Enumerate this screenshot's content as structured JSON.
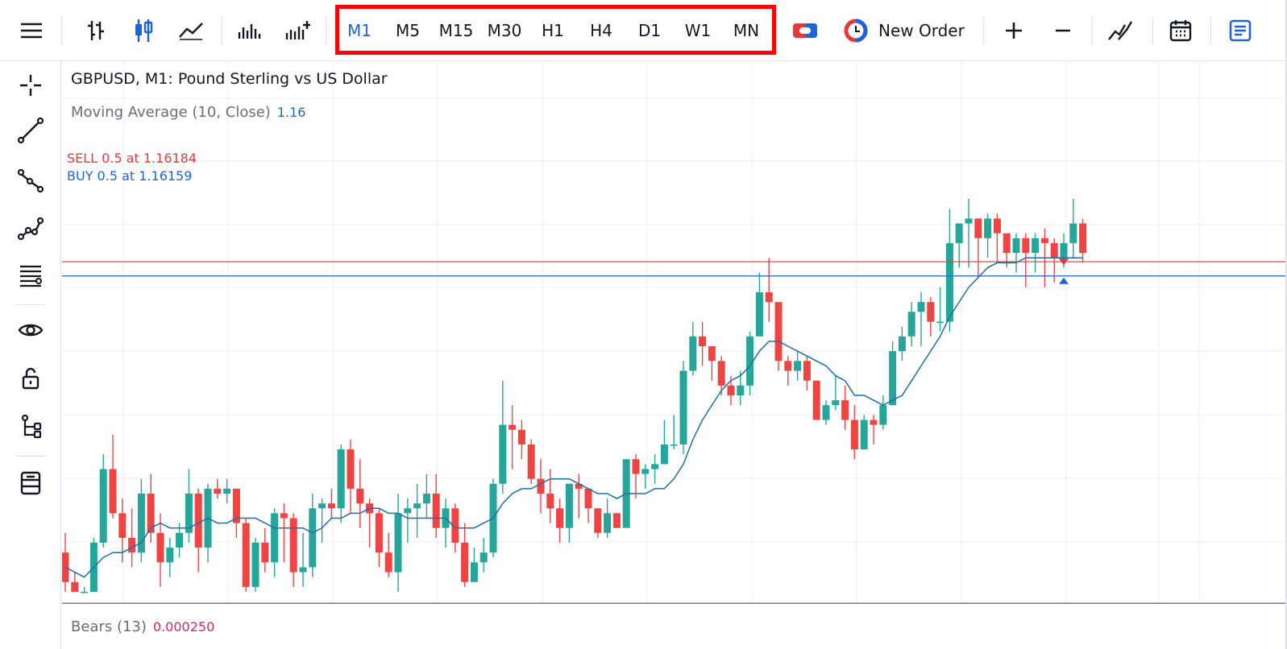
{
  "toolbar": {
    "timeframes": [
      "M1",
      "M5",
      "M15",
      "M30",
      "H1",
      "H4",
      "D1",
      "W1",
      "MN"
    ],
    "active_timeframe": "M1",
    "new_order_label": "New Order"
  },
  "chart": {
    "title": "GBPUSD, M1: Pound Sterling vs US Dollar",
    "indicator_label": "Moving Average (10, Close)",
    "indicator_value": "1.16",
    "sell_order": "SELL 0.5 at 1.16184",
    "buy_order": "BUY 0.5 at 1.16159",
    "bears_label": "Bears (13)",
    "bears_value": "0.000250"
  },
  "colors": {
    "bull": "#26a69a",
    "bear": "#ef4444",
    "ma_line": "#1e6ea8",
    "sell_line": "#e03a3e",
    "buy_line": "#1e64d8",
    "active": "#1e64d8"
  },
  "chart_data": {
    "type": "candlestick",
    "price_range": [
      0,
      100
    ],
    "sell_level": 67.2,
    "buy_level": 64.3,
    "candles": [
      [
        8,
        2,
        12,
        0
      ],
      [
        2,
        0,
        4,
        0
      ],
      [
        0,
        0,
        1,
        0
      ],
      [
        0,
        10,
        11,
        0
      ],
      [
        10,
        25,
        28,
        9
      ],
      [
        25,
        16,
        32,
        15
      ],
      [
        16,
        11,
        19,
        6
      ],
      [
        11,
        8,
        17,
        5
      ],
      [
        8,
        20,
        23,
        6
      ],
      [
        20,
        12,
        24,
        10
      ],
      [
        12,
        6,
        16,
        1
      ],
      [
        6,
        9,
        11,
        3
      ],
      [
        9,
        12,
        14,
        7
      ],
      [
        12,
        20,
        25,
        10
      ],
      [
        20,
        9,
        21,
        4
      ],
      [
        9,
        21,
        22,
        6
      ],
      [
        21,
        20,
        23,
        19
      ],
      [
        20,
        21,
        23,
        18
      ],
      [
        21,
        14,
        21,
        11
      ],
      [
        14,
        1,
        15,
        0
      ],
      [
        1,
        10,
        11,
        0
      ],
      [
        10,
        6,
        13,
        4
      ],
      [
        6,
        16,
        17,
        3
      ],
      [
        16,
        15,
        18,
        6
      ],
      [
        15,
        4,
        16,
        1
      ],
      [
        4,
        5,
        12,
        1
      ],
      [
        5,
        17,
        20,
        3
      ],
      [
        17,
        18,
        19,
        10
      ],
      [
        18,
        17,
        21,
        15
      ],
      [
        17,
        29,
        30,
        14
      ],
      [
        29,
        21,
        31,
        16
      ],
      [
        21,
        18,
        27,
        13
      ],
      [
        18,
        16,
        19,
        9
      ],
      [
        16,
        8,
        17,
        5
      ],
      [
        8,
        4,
        12,
        3
      ],
      [
        4,
        16,
        20,
        0
      ],
      [
        16,
        17,
        19,
        10
      ],
      [
        17,
        18,
        22,
        11
      ],
      [
        18,
        20,
        24,
        15
      ],
      [
        20,
        13,
        24,
        11
      ],
      [
        13,
        17,
        19,
        9
      ],
      [
        17,
        10,
        18,
        8
      ],
      [
        10,
        2,
        14,
        1
      ],
      [
        2,
        6,
        9,
        2
      ],
      [
        6,
        8,
        11,
        4
      ],
      [
        8,
        22,
        23,
        7
      ],
      [
        22,
        34,
        43,
        20
      ],
      [
        34,
        33,
        38,
        25
      ],
      [
        33,
        30,
        35,
        27
      ],
      [
        30,
        23,
        31,
        22
      ],
      [
        23,
        20,
        27,
        16
      ],
      [
        20,
        17,
        25,
        14
      ],
      [
        17,
        13,
        19,
        10
      ],
      [
        13,
        22,
        22,
        10
      ],
      [
        22,
        21,
        24,
        15
      ],
      [
        21,
        17,
        21,
        14
      ],
      [
        17,
        12,
        17,
        11
      ],
      [
        12,
        16,
        19,
        11
      ],
      [
        16,
        13,
        16,
        13
      ],
      [
        13,
        27,
        27,
        15
      ],
      [
        27,
        24,
        28,
        19
      ],
      [
        24,
        25,
        26,
        21
      ],
      [
        25,
        26,
        28,
        22
      ],
      [
        26,
        30,
        35,
        26
      ],
      [
        30,
        30,
        36,
        29
      ],
      [
        30,
        45,
        47,
        28
      ],
      [
        45,
        52,
        55,
        44
      ],
      [
        52,
        50,
        55,
        46
      ],
      [
        50,
        47,
        50,
        43
      ],
      [
        47,
        42,
        48,
        40
      ],
      [
        42,
        40,
        44,
        38
      ],
      [
        40,
        42,
        45,
        38
      ],
      [
        42,
        52,
        53,
        40
      ],
      [
        52,
        61,
        65,
        53
      ],
      [
        61,
        59,
        68,
        55
      ],
      [
        59,
        47,
        59,
        45
      ],
      [
        47,
        45,
        48,
        42
      ],
      [
        45,
        47,
        49,
        43
      ],
      [
        47,
        43,
        48,
        41
      ],
      [
        43,
        35,
        43,
        35
      ],
      [
        35,
        38,
        39,
        34
      ],
      [
        38,
        39,
        44,
        37
      ],
      [
        39,
        35,
        42,
        33
      ],
      [
        35,
        29,
        38,
        27
      ],
      [
        29,
        35,
        36,
        29
      ],
      [
        35,
        34,
        36,
        30
      ],
      [
        34,
        38,
        40,
        33
      ],
      [
        38,
        49,
        51,
        38
      ],
      [
        49,
        52,
        54,
        47
      ],
      [
        52,
        57,
        59,
        50
      ],
      [
        57,
        59,
        61,
        50
      ],
      [
        59,
        55,
        60,
        52
      ],
      [
        55,
        55,
        62,
        53
      ],
      [
        55,
        71,
        78,
        53
      ],
      [
        71,
        75,
        75,
        66
      ],
      [
        75,
        76,
        80,
        66
      ],
      [
        76,
        72,
        76,
        64
      ],
      [
        72,
        76,
        77,
        68
      ],
      [
        76,
        73,
        77,
        67
      ],
      [
        73,
        69,
        71,
        66
      ],
      [
        69,
        72,
        73,
        65
      ],
      [
        72,
        69,
        73,
        62
      ],
      [
        69,
        72,
        73,
        65
      ],
      [
        72,
        71,
        74,
        62
      ],
      [
        71,
        68,
        72,
        63
      ],
      [
        68,
        71,
        73,
        66
      ],
      [
        71,
        75,
        80,
        68
      ],
      [
        75,
        69,
        76,
        67
      ]
    ],
    "ma": [
      5,
      4,
      3,
      5,
      7,
      8,
      8,
      9,
      10,
      13,
      14,
      13,
      13,
      13,
      14,
      15,
      14,
      14,
      15,
      15,
      15,
      14,
      13,
      13,
      13,
      13,
      12,
      13,
      15,
      15,
      16,
      16,
      17,
      17,
      16,
      16,
      15,
      15,
      15,
      15,
      15,
      13,
      13,
      13,
      14,
      15,
      18,
      20,
      21,
      21,
      22,
      23,
      23,
      23,
      22,
      21,
      20,
      20,
      19,
      20,
      20,
      20,
      21,
      21,
      23,
      26,
      31,
      35,
      38,
      41,
      43,
      44,
      46,
      49,
      51,
      51,
      50,
      49,
      48,
      47,
      46,
      44,
      43,
      40,
      40,
      39,
      38,
      39,
      40,
      43,
      46,
      49,
      52,
      56,
      59,
      62,
      64,
      66,
      67,
      67,
      67,
      68,
      68,
      68,
      68,
      68,
      68,
      68
    ]
  }
}
